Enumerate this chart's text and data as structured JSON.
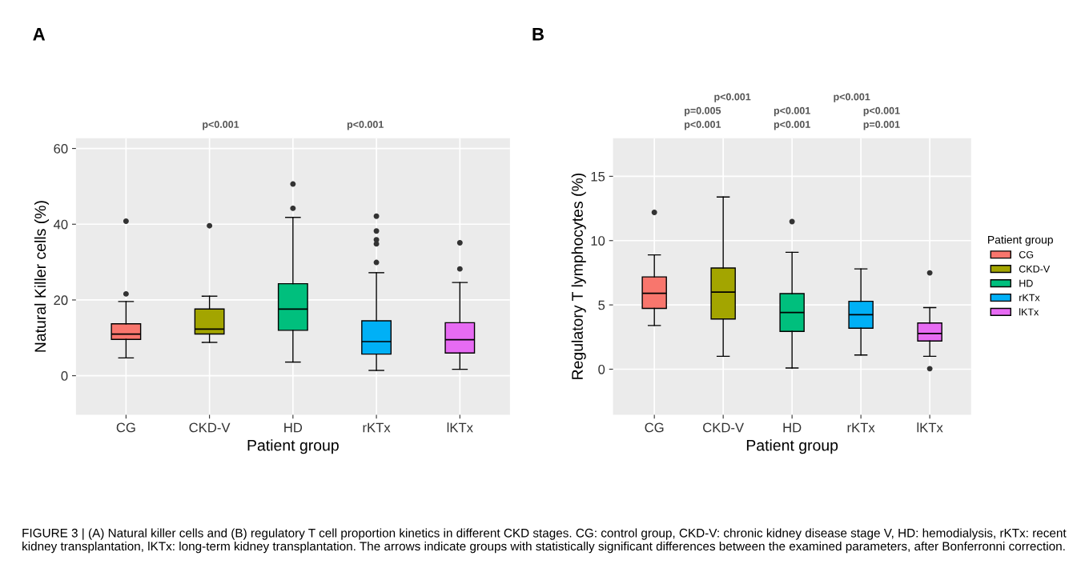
{
  "chart_data": [
    {
      "type": "box",
      "title": "A",
      "xlabel": "Patient group",
      "ylabel": "Natural Killer cells (%)",
      "categories": [
        "CG",
        "CKD-V",
        "HD",
        "rKTx",
        "lKTx"
      ],
      "colors": [
        "#f8766d",
        "#a3a500",
        "#00bf7d",
        "#00b0f6",
        "#e76bf3"
      ],
      "boxes": [
        {
          "low": 4.7,
          "q1": 9.6,
          "median": 11.0,
          "q3": 13.7,
          "high": 19.6,
          "outliers": [
            21.6,
            40.8
          ]
        },
        {
          "low": 8.8,
          "q1": 11.0,
          "median": 12.3,
          "q3": 17.6,
          "high": 21.0,
          "outliers": [
            39.6
          ]
        },
        {
          "low": 3.6,
          "q1": 12.0,
          "median": 17.6,
          "q3": 24.3,
          "high": 41.8,
          "outliers": [
            44.2,
            50.6
          ]
        },
        {
          "low": 1.4,
          "q1": 5.7,
          "median": 9.0,
          "q3": 14.5,
          "high": 27.2,
          "outliers": [
            29.9,
            34.8,
            35.9,
            38.2,
            42.1
          ]
        },
        {
          "low": 1.7,
          "q1": 6.0,
          "median": 9.5,
          "q3": 14.0,
          "high": 24.6,
          "outliers": [
            28.2,
            35.1
          ]
        }
      ],
      "ylim": [
        -10.3,
        62.7
      ],
      "yticks": [
        0,
        20,
        40,
        60
      ],
      "grid": true,
      "annotations": [
        "p<0.001",
        "p<0.001"
      ]
    },
    {
      "type": "box",
      "title": "B",
      "xlabel": "Patient group",
      "ylabel": "Regulatory T lymphocytes (%)",
      "categories": [
        "CG",
        "CKD-V",
        "HD",
        "rKTx",
        "lKTx"
      ],
      "series": [
        {
          "name": "CG",
          "color": "#f8766d",
          "boxes": [
            {
              "low": 3.4,
              "q1": 4.73,
              "median": 5.9,
              "q3": 7.18,
              "high": 8.89,
              "outliers": [
                12.19
              ]
            },
            null,
            null,
            null,
            null
          ]
        },
        {
          "name": "CKD-V",
          "color": "#a3a500",
          "boxes": [
            null,
            {
              "low": 1.0,
              "q1": 3.9,
              "median": 6.0,
              "q3": 7.87,
              "high": 13.39
            },
            null,
            null,
            null
          ]
        },
        {
          "name": "HD",
          "color": "#00bf7d",
          "boxes": [
            null,
            null,
            {
              "low": 0.09,
              "q1": 2.94,
              "median": 4.41,
              "q3": 5.88,
              "high": 9.09,
              "outliers": [
                11.48
              ]
            },
            null,
            null
          ]
        },
        {
          "name": "rKTx",
          "color": "#00b0f6",
          "boxes": [
            null,
            null,
            null,
            {
              "low": 1.1,
              "q1": 3.19,
              "median": 4.24,
              "q3": 5.28,
              "high": 7.8
            },
            null
          ]
        },
        {
          "name": "lKTx",
          "color": "#e76bf3",
          "boxes": [
            null,
            null,
            null,
            null,
            {
              "low": 1.0,
              "q1": 2.19,
              "median": 2.78,
              "q3": 3.59,
              "high": 4.79,
              "outliers": [
                0.04,
                7.49
              ]
            }
          ]
        }
      ],
      "ylim": [
        -3.54,
        17.96
      ],
      "yticks": [
        0,
        5,
        10,
        15
      ],
      "grid": true,
      "legend": "right",
      "legend_title": "Patient group",
      "annotations": [
        "p<0.001",
        "p<0.001",
        "p=0.001",
        "p=0.005",
        "p<0.001",
        "p<0.001",
        "p<0.001",
        "p<0.001",
        "FIGURE 3 | (A) Natural killer cells and (B) regulatory T cell proportion kinetics in different CKD stages. CG: control group, CKD-V: chronic kidney disease stage V, HD: hemodialysis, rKTx: recent kidney transplantation, lKTx: long-term kidney transplantation. The arrows indicate groups with statistically significant differences between the examined parameters, after Bonferronni correction."
      ]
    }
  ]
}
